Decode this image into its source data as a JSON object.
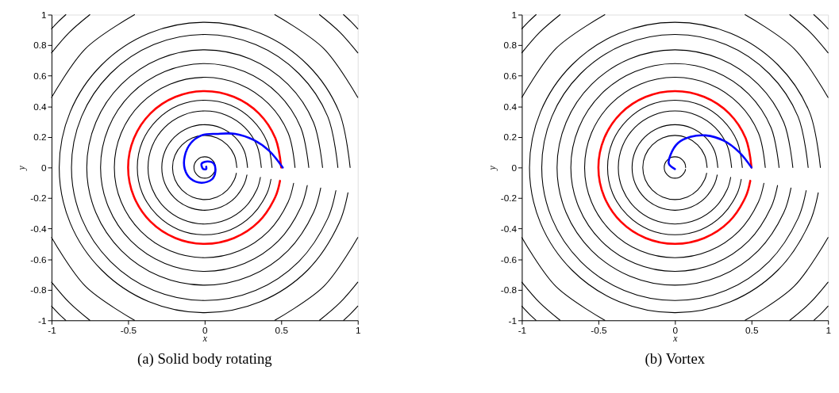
{
  "chart_data": [
    {
      "type": "line",
      "title": "(a) Solid body rotating",
      "xlabel": "x",
      "ylabel": "y",
      "xlim": [
        -1,
        1
      ],
      "ylim": [
        -1,
        1
      ],
      "xticks": [
        -1,
        -0.5,
        0,
        0.5,
        1
      ],
      "yticks": [
        -1,
        -0.8,
        -0.6,
        -0.4,
        -0.2,
        0,
        0.2,
        0.4,
        0.6,
        0.8,
        1
      ],
      "grid": false,
      "marker": "none",
      "line_style": "solid",
      "series": [
        {
          "color": "#000000",
          "x": [
            0.07,
            0.065,
            0.049,
            0.027,
            0,
            -0.027,
            -0.049,
            -0.065,
            -0.07,
            -0.065,
            -0.049,
            -0.027,
            0,
            0.027,
            0.049,
            0.065,
            0.069
          ],
          "values": [
            0,
            0.027,
            0.049,
            0.065,
            0.07,
            0.065,
            0.049,
            0.027,
            0,
            -0.027,
            -0.049,
            -0.065,
            -0.07,
            -0.065,
            -0.049,
            -0.027,
            -0.012
          ]
        },
        {
          "color": "#000000",
          "x": [
            0.21,
            0.194,
            0.148,
            0.08,
            0,
            -0.08,
            -0.148,
            -0.194,
            -0.21,
            -0.194,
            -0.148,
            -0.08,
            0,
            0.08,
            0.148,
            0.194,
            0.207
          ],
          "values": [
            0,
            0.08,
            0.148,
            0.194,
            0.21,
            0.194,
            0.148,
            0.08,
            0,
            -0.08,
            -0.148,
            -0.194,
            -0.21,
            -0.194,
            -0.148,
            -0.08,
            -0.037
          ]
        },
        {
          "color": "#000000",
          "x": [
            0.28,
            0.259,
            0.198,
            0.107,
            0,
            -0.107,
            -0.198,
            -0.259,
            -0.28,
            -0.259,
            -0.198,
            -0.107,
            0,
            0.107,
            0.198,
            0.259,
            0.276
          ],
          "values": [
            0,
            0.107,
            0.198,
            0.259,
            0.28,
            0.259,
            0.198,
            0.107,
            0,
            -0.107,
            -0.198,
            -0.259,
            -0.28,
            -0.259,
            -0.198,
            -0.107,
            -0.049
          ]
        },
        {
          "color": "#000000",
          "x": [
            0.37,
            0.342,
            0.262,
            0.142,
            0,
            -0.142,
            -0.262,
            -0.342,
            -0.37,
            -0.342,
            -0.262,
            -0.142,
            0,
            0.142,
            0.262,
            0.342,
            0.364
          ],
          "values": [
            0,
            0.142,
            0.262,
            0.342,
            0.37,
            0.342,
            0.262,
            0.142,
            0,
            -0.142,
            -0.262,
            -0.342,
            -0.37,
            -0.342,
            -0.262,
            -0.142,
            -0.064
          ]
        },
        {
          "color": "#000000",
          "x": [
            0.44,
            0.407,
            0.311,
            0.169,
            0,
            -0.169,
            -0.311,
            -0.407,
            -0.44,
            -0.407,
            -0.311,
            -0.169,
            0,
            0.169,
            0.311,
            0.407,
            0.433
          ],
          "values": [
            0,
            0.169,
            0.311,
            0.407,
            0.44,
            0.407,
            0.311,
            0.169,
            0,
            -0.169,
            -0.311,
            -0.407,
            -0.44,
            -0.407,
            -0.311,
            -0.169,
            -0.077
          ]
        },
        {
          "color": "#000000",
          "x": [
            0.59,
            0.545,
            0.417,
            0.226,
            0,
            -0.226,
            -0.417,
            -0.545,
            -0.59,
            -0.545,
            -0.417,
            -0.226,
            0,
            0.226,
            0.417,
            0.545,
            0.581
          ],
          "values": [
            0,
            0.226,
            0.417,
            0.545,
            0.59,
            0.545,
            0.417,
            0.226,
            0,
            -0.226,
            -0.417,
            -0.545,
            -0.59,
            -0.545,
            -0.417,
            -0.226,
            -0.103
          ]
        },
        {
          "color": "#000000",
          "x": [
            0.68,
            0.628,
            0.481,
            0.26,
            0,
            -0.26,
            -0.481,
            -0.628,
            -0.68,
            -0.628,
            -0.481,
            -0.26,
            0,
            0.26,
            0.481,
            0.628,
            0.67
          ],
          "values": [
            0,
            0.26,
            0.481,
            0.628,
            0.68,
            0.628,
            0.481,
            0.26,
            0,
            -0.26,
            -0.481,
            -0.628,
            -0.68,
            -0.628,
            -0.481,
            -0.26,
            -0.118
          ]
        },
        {
          "color": "#000000",
          "x": [
            0.77,
            0.711,
            0.544,
            0.295,
            0,
            -0.295,
            -0.544,
            -0.711,
            -0.77,
            -0.711,
            -0.544,
            -0.295,
            0,
            0.295,
            0.544,
            0.711,
            0.758
          ],
          "values": [
            0,
            0.295,
            0.544,
            0.711,
            0.77,
            0.711,
            0.544,
            0.295,
            0,
            -0.295,
            -0.544,
            -0.711,
            -0.77,
            -0.711,
            -0.544,
            -0.295,
            -0.134
          ]
        },
        {
          "color": "#000000",
          "x": [
            0.87,
            0.804,
            0.615,
            0.333,
            0,
            -0.333,
            -0.615,
            -0.804,
            -0.87,
            -0.804,
            -0.615,
            -0.333,
            0,
            0.333,
            0.615,
            0.804,
            0.857
          ],
          "values": [
            0,
            0.333,
            0.615,
            0.804,
            0.87,
            0.804,
            0.615,
            0.333,
            0,
            -0.333,
            -0.615,
            -0.804,
            -0.87,
            -0.804,
            -0.615,
            -0.333,
            -0.151
          ]
        },
        {
          "color": "#000000",
          "x": [
            0.95,
            0.878,
            0.672,
            0.364,
            0,
            -0.364,
            -0.672,
            -0.878,
            -0.95,
            -0.878,
            -0.672,
            -0.364,
            0,
            0.364,
            0.672,
            0.878,
            0.936
          ],
          "values": [
            0,
            0.364,
            0.672,
            0.878,
            0.95,
            0.878,
            0.672,
            0.364,
            0,
            -0.364,
            -0.672,
            -0.878,
            -0.95,
            -0.878,
            -0.672,
            -0.364,
            -0.165
          ]
        },
        {
          "color": "#000000",
          "x": [
            1,
            0.778,
            0.458,
            null,
            -0.458,
            -0.778,
            -1,
            null,
            -1,
            -0.778,
            -0.458,
            null,
            0.458,
            0.778,
            1
          ],
          "values": [
            0.458,
            0.778,
            1,
            null,
            1,
            0.778,
            0.458,
            null,
            -0.458,
            -0.778,
            -1,
            null,
            -1,
            -0.778,
            -0.458
          ]
        },
        {
          "color": "#000000",
          "x": [
            1,
            0.884,
            0.75,
            null,
            -0.75,
            -0.884,
            -1,
            null,
            -1,
            -0.884,
            -0.75,
            null,
            0.75,
            0.884,
            1
          ],
          "values": [
            0.75,
            0.884,
            1,
            null,
            1,
            0.884,
            0.75,
            null,
            -0.75,
            -0.884,
            -1,
            null,
            -1,
            -0.884,
            -0.75
          ]
        },
        {
          "color": "#000000",
          "x": [
            1,
            0.955,
            0.907,
            null,
            -0.907,
            -0.955,
            -1,
            null,
            -1,
            -0.955,
            -0.907,
            null,
            0.907,
            0.955,
            1
          ],
          "values": [
            0.907,
            0.955,
            1,
            null,
            1,
            0.955,
            0.907,
            null,
            -0.907,
            -0.955,
            -1,
            null,
            -1,
            -0.955,
            -0.907
          ]
        },
        {
          "color": "#ff0000",
          "x": [
            0.5,
            0.462,
            0.354,
            0.191,
            0,
            -0.191,
            -0.354,
            -0.462,
            -0.5,
            -0.462,
            -0.354,
            -0.191,
            0,
            0.191,
            0.354,
            0.462,
            0.492
          ],
          "values": [
            0,
            0.191,
            0.354,
            0.462,
            0.5,
            0.462,
            0.354,
            0.191,
            0,
            -0.191,
            -0.354,
            -0.462,
            -0.5,
            -0.462,
            -0.354,
            -0.191,
            -0.087
          ]
        },
        {
          "color": "#0000ff",
          "x": [
            0.51,
            0.42,
            0.32,
            0.2,
            0.08,
            -0.02,
            -0.09,
            -0.13,
            -0.13,
            -0.09,
            -0.02,
            0.05,
            0.07,
            0.06,
            0.02,
            -0.02,
            -0.01,
            0.01,
            0.01
          ],
          "values": [
            0,
            0.11,
            0.18,
            0.22,
            0.22,
            0.21,
            0.16,
            0.075,
            -0.01,
            -0.075,
            -0.1,
            -0.075,
            -0.025,
            0.025,
            0.04,
            0.025,
            -0.01,
            -0.01,
            0.005
          ]
        }
      ]
    },
    {
      "type": "line",
      "title": "(b) Vortex",
      "xlabel": "x",
      "ylabel": "y",
      "xlim": [
        -1,
        1
      ],
      "ylim": [
        -1,
        1
      ],
      "xticks": [
        -1,
        -0.5,
        0,
        0.5,
        1
      ],
      "yticks": [
        -1,
        -0.8,
        -0.6,
        -0.4,
        -0.2,
        0,
        0.2,
        0.4,
        0.6,
        0.8,
        1
      ],
      "grid": false,
      "marker": "none",
      "line_style": "solid",
      "series": [
        {
          "color": "#000000",
          "x": [
            0.07,
            0.065,
            0.049,
            0.027,
            0,
            -0.027,
            -0.049,
            -0.065,
            -0.07,
            -0.065,
            -0.049,
            -0.027,
            0,
            0.027,
            0.049,
            0.065,
            0.069
          ],
          "values": [
            0,
            0.027,
            0.049,
            0.065,
            0.07,
            0.065,
            0.049,
            0.027,
            0,
            -0.027,
            -0.049,
            -0.065,
            -0.07,
            -0.065,
            -0.049,
            -0.027,
            -0.012
          ]
        },
        {
          "color": "#000000",
          "x": [
            0.21,
            0.194,
            0.148,
            0.08,
            0,
            -0.08,
            -0.148,
            -0.194,
            -0.21,
            -0.194,
            -0.148,
            -0.08,
            0,
            0.08,
            0.148,
            0.194,
            0.207
          ],
          "values": [
            0,
            0.08,
            0.148,
            0.194,
            0.21,
            0.194,
            0.148,
            0.08,
            0,
            -0.08,
            -0.148,
            -0.194,
            -0.21,
            -0.194,
            -0.148,
            -0.08,
            -0.037
          ]
        },
        {
          "color": "#000000",
          "x": [
            0.28,
            0.259,
            0.198,
            0.107,
            0,
            -0.107,
            -0.198,
            -0.259,
            -0.28,
            -0.259,
            -0.198,
            -0.107,
            0,
            0.107,
            0.198,
            0.259,
            0.276
          ],
          "values": [
            0,
            0.107,
            0.198,
            0.259,
            0.28,
            0.259,
            0.198,
            0.107,
            0,
            -0.107,
            -0.198,
            -0.259,
            -0.28,
            -0.259,
            -0.198,
            -0.107,
            -0.049
          ]
        },
        {
          "color": "#000000",
          "x": [
            0.37,
            0.342,
            0.262,
            0.142,
            0,
            -0.142,
            -0.262,
            -0.342,
            -0.37,
            -0.342,
            -0.262,
            -0.142,
            0,
            0.142,
            0.262,
            0.342,
            0.364
          ],
          "values": [
            0,
            0.142,
            0.262,
            0.342,
            0.37,
            0.342,
            0.262,
            0.142,
            0,
            -0.142,
            -0.262,
            -0.342,
            -0.37,
            -0.342,
            -0.262,
            -0.142,
            -0.064
          ]
        },
        {
          "color": "#000000",
          "x": [
            0.44,
            0.407,
            0.311,
            0.169,
            0,
            -0.169,
            -0.311,
            -0.407,
            -0.44,
            -0.407,
            -0.311,
            -0.169,
            0,
            0.169,
            0.311,
            0.407,
            0.433
          ],
          "values": [
            0,
            0.169,
            0.311,
            0.407,
            0.44,
            0.407,
            0.311,
            0.169,
            0,
            -0.169,
            -0.311,
            -0.407,
            -0.44,
            -0.407,
            -0.311,
            -0.169,
            -0.077
          ]
        },
        {
          "color": "#000000",
          "x": [
            0.59,
            0.545,
            0.417,
            0.226,
            0,
            -0.226,
            -0.417,
            -0.545,
            -0.59,
            -0.545,
            -0.417,
            -0.226,
            0,
            0.226,
            0.417,
            0.545,
            0.581
          ],
          "values": [
            0,
            0.226,
            0.417,
            0.545,
            0.59,
            0.545,
            0.417,
            0.226,
            0,
            -0.226,
            -0.417,
            -0.545,
            -0.59,
            -0.545,
            -0.417,
            -0.226,
            -0.103
          ]
        },
        {
          "color": "#000000",
          "x": [
            0.68,
            0.628,
            0.481,
            0.26,
            0,
            -0.26,
            -0.481,
            -0.628,
            -0.68,
            -0.628,
            -0.481,
            -0.26,
            0,
            0.26,
            0.481,
            0.628,
            0.67
          ],
          "values": [
            0,
            0.26,
            0.481,
            0.628,
            0.68,
            0.628,
            0.481,
            0.26,
            0,
            -0.26,
            -0.481,
            -0.628,
            -0.68,
            -0.628,
            -0.481,
            -0.26,
            -0.118
          ]
        },
        {
          "color": "#000000",
          "x": [
            0.77,
            0.711,
            0.544,
            0.295,
            0,
            -0.295,
            -0.544,
            -0.711,
            -0.77,
            -0.711,
            -0.544,
            -0.295,
            0,
            0.295,
            0.544,
            0.711,
            0.758
          ],
          "values": [
            0,
            0.295,
            0.544,
            0.711,
            0.77,
            0.711,
            0.544,
            0.295,
            0,
            -0.295,
            -0.544,
            -0.711,
            -0.77,
            -0.711,
            -0.544,
            -0.295,
            -0.134
          ]
        },
        {
          "color": "#000000",
          "x": [
            0.87,
            0.804,
            0.615,
            0.333,
            0,
            -0.333,
            -0.615,
            -0.804,
            -0.87,
            -0.804,
            -0.615,
            -0.333,
            0,
            0.333,
            0.615,
            0.804,
            0.857
          ],
          "values": [
            0,
            0.333,
            0.615,
            0.804,
            0.87,
            0.804,
            0.615,
            0.333,
            0,
            -0.333,
            -0.615,
            -0.804,
            -0.87,
            -0.804,
            -0.615,
            -0.333,
            -0.151
          ]
        },
        {
          "color": "#000000",
          "x": [
            0.95,
            0.878,
            0.672,
            0.364,
            0,
            -0.364,
            -0.672,
            -0.878,
            -0.95,
            -0.878,
            -0.672,
            -0.364,
            0,
            0.364,
            0.672,
            0.878,
            0.936
          ],
          "values": [
            0,
            0.364,
            0.672,
            0.878,
            0.95,
            0.878,
            0.672,
            0.364,
            0,
            -0.364,
            -0.672,
            -0.878,
            -0.95,
            -0.878,
            -0.672,
            -0.364,
            -0.165
          ]
        },
        {
          "color": "#000000",
          "x": [
            1,
            0.778,
            0.458,
            null,
            -0.458,
            -0.778,
            -1,
            null,
            -1,
            -0.778,
            -0.458,
            null,
            0.458,
            0.778,
            1
          ],
          "values": [
            0.458,
            0.778,
            1,
            null,
            1,
            0.778,
            0.458,
            null,
            -0.458,
            -0.778,
            -1,
            null,
            -1,
            -0.778,
            -0.458
          ]
        },
        {
          "color": "#000000",
          "x": [
            1,
            0.884,
            0.75,
            null,
            -0.75,
            -0.884,
            -1,
            null,
            -1,
            -0.884,
            -0.75,
            null,
            0.75,
            0.884,
            1
          ],
          "values": [
            0.75,
            0.884,
            1,
            null,
            1,
            0.884,
            0.75,
            null,
            -0.75,
            -0.884,
            -1,
            null,
            -1,
            -0.884,
            -0.75
          ]
        },
        {
          "color": "#000000",
          "x": [
            1,
            0.955,
            0.907,
            null,
            -0.907,
            -0.955,
            -1,
            null,
            -1,
            -0.955,
            -0.907,
            null,
            0.907,
            0.955,
            1
          ],
          "values": [
            0.907,
            0.955,
            1,
            null,
            1,
            0.955,
            0.907,
            null,
            -0.907,
            -0.955,
            -1,
            null,
            -1,
            -0.955,
            -0.907
          ]
        },
        {
          "color": "#ff0000",
          "x": [
            0.5,
            0.462,
            0.354,
            0.191,
            0,
            -0.191,
            -0.354,
            -0.462,
            -0.5,
            -0.462,
            -0.354,
            -0.191,
            0,
            0.191,
            0.354,
            0.462,
            0.492
          ],
          "values": [
            0,
            0.191,
            0.354,
            0.462,
            0.5,
            0.462,
            0.354,
            0.191,
            0,
            -0.191,
            -0.354,
            -0.462,
            -0.5,
            -0.462,
            -0.354,
            -0.191,
            -0.087
          ]
        },
        {
          "color": "#0000ff",
          "x": [
            0.5,
            0.42,
            0.32,
            0.2,
            0.1,
            0.02,
            -0.03,
            -0.04,
            0
          ],
          "values": [
            0,
            0.1,
            0.175,
            0.21,
            0.2,
            0.16,
            0.08,
            0.025,
            -0.01
          ]
        }
      ]
    }
  ]
}
